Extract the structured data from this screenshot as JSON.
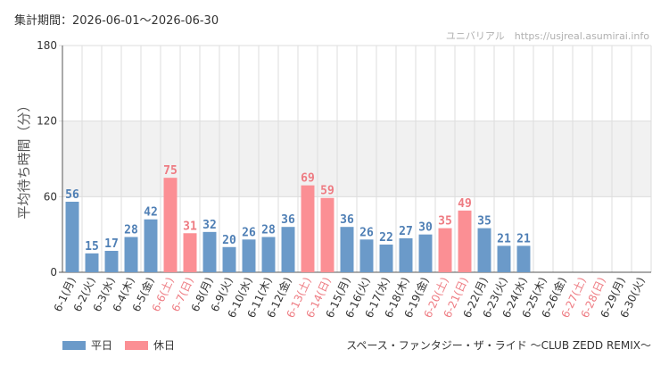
{
  "header": {
    "period": "集計期間：2026-06-01～2026-06-30",
    "site": "ユニバリアル　https://usjreal.asumirai.info"
  },
  "footer": {
    "ride": "スペース・ファンタジー・ザ・ライド ～CLUB ZEDD REMIX～"
  },
  "colors": {
    "weekday": "#6b9ac9",
    "holiday": "#fb8f94",
    "weekday_text": "#4f7fb5",
    "holiday_text": "#ee7b82",
    "band": "#f1f1f1",
    "grid": "#dddddd"
  },
  "chart_data": {
    "type": "bar",
    "ylabel": "平均待ち時間（分）",
    "ylim": [
      0,
      180
    ],
    "yticks": [
      0,
      60,
      120,
      180
    ],
    "band": [
      60,
      120
    ],
    "categories": [
      "6-1(月)",
      "6-2(火)",
      "6-3(水)",
      "6-4(木)",
      "6-5(金)",
      "6-6(土)",
      "6-7(日)",
      "6-8(月)",
      "6-9(火)",
      "6-10(水)",
      "6-11(木)",
      "6-12(金)",
      "6-13(土)",
      "6-14(日)",
      "6-15(月)",
      "6-16(火)",
      "6-17(水)",
      "6-18(木)",
      "6-19(金)",
      "6-20(土)",
      "6-21(日)",
      "6-22(月)",
      "6-23(火)",
      "6-24(水)",
      "6-25(木)",
      "6-26(金)",
      "6-27(土)",
      "6-28(日)",
      "6-29(月)",
      "6-30(火)"
    ],
    "values": [
      56,
      15,
      17,
      28,
      42,
      75,
      31,
      32,
      20,
      26,
      28,
      36,
      69,
      59,
      36,
      26,
      22,
      27,
      30,
      35,
      49,
      35,
      21,
      21,
      null,
      null,
      null,
      null,
      null,
      null
    ],
    "holiday": [
      false,
      false,
      false,
      false,
      false,
      true,
      true,
      false,
      false,
      false,
      false,
      false,
      true,
      true,
      false,
      false,
      false,
      false,
      false,
      true,
      true,
      false,
      false,
      false,
      false,
      false,
      true,
      true,
      false,
      false
    ],
    "legend": [
      {
        "name": "平日",
        "kind": "weekday"
      },
      {
        "name": "休日",
        "kind": "holiday"
      }
    ]
  }
}
